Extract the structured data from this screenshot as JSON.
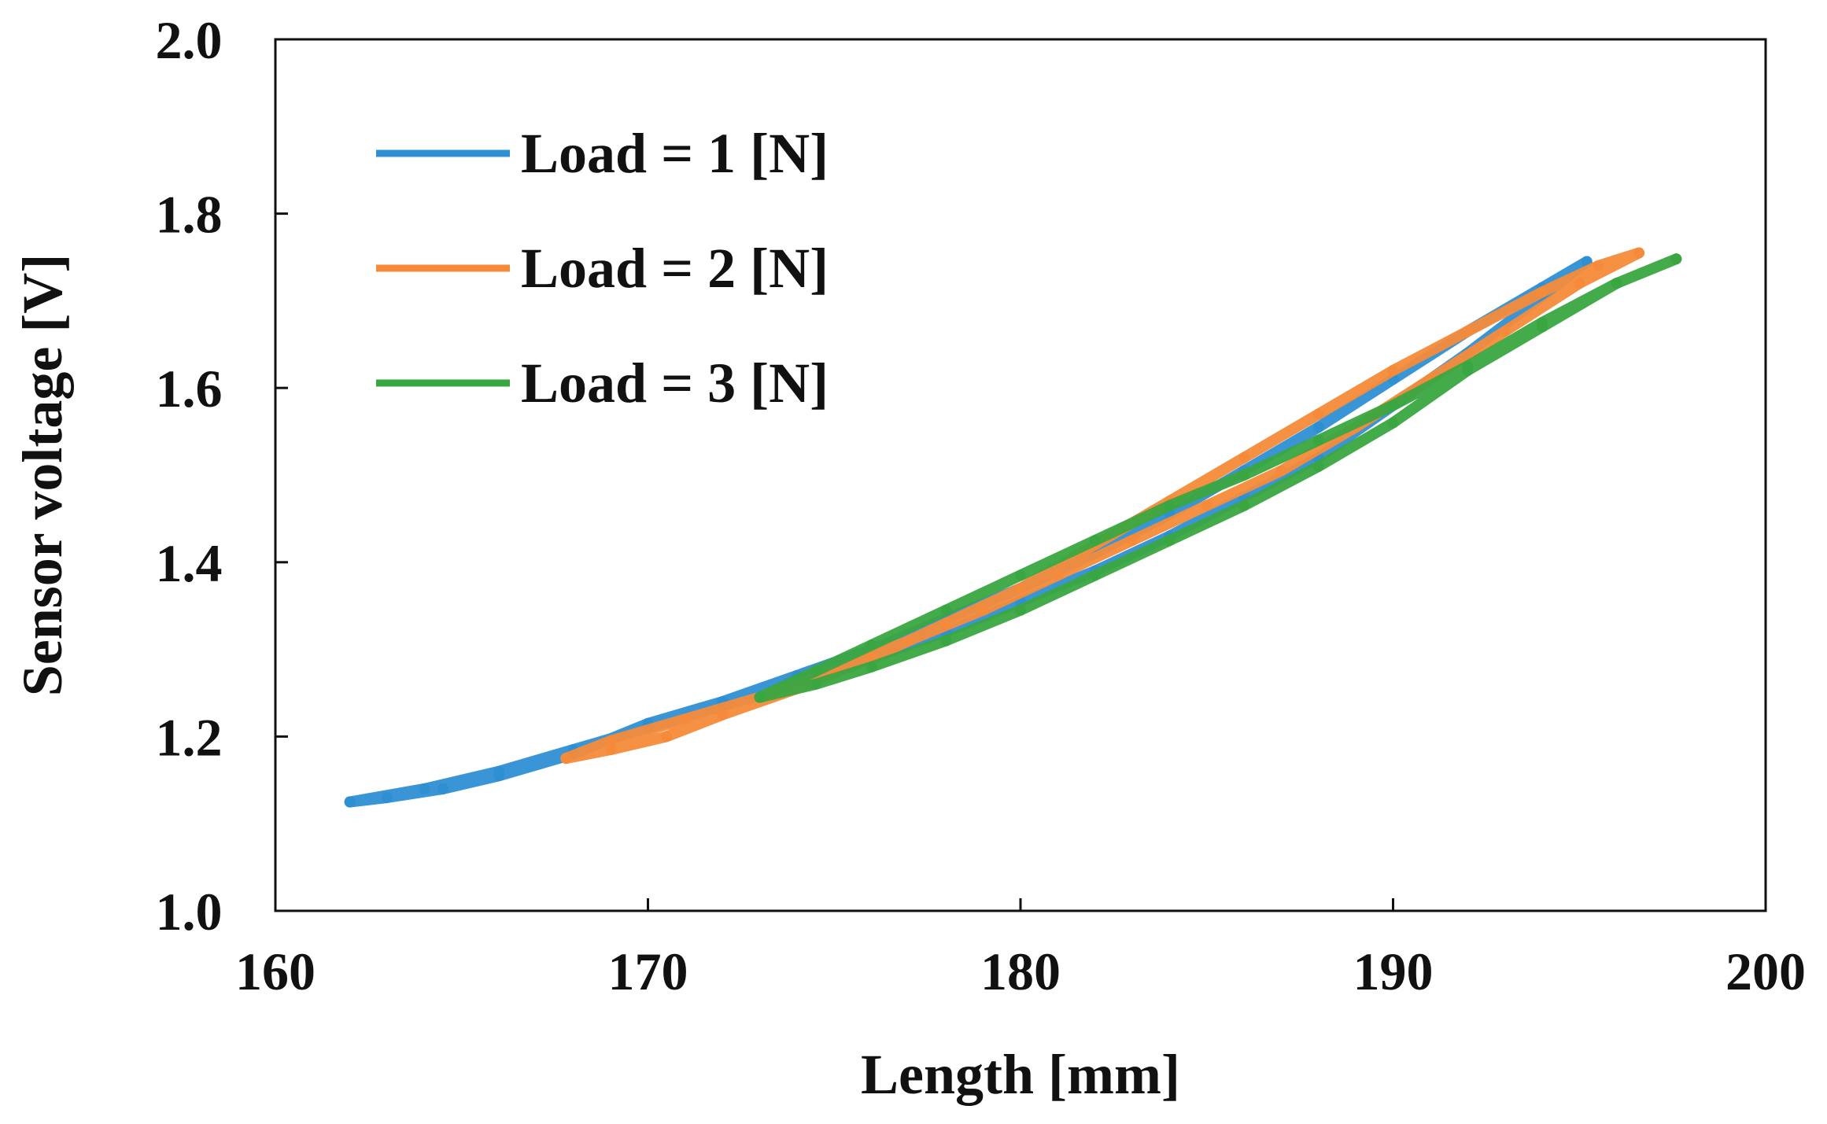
{
  "chart_data": {
    "type": "line",
    "title": "",
    "xlabel": "Length [mm]",
    "ylabel": "Sensor voltage [V]",
    "xlim": [
      160,
      200
    ],
    "ylim": [
      1.0,
      2.0
    ],
    "xticks": [
      "160",
      "170",
      "180",
      "190",
      "200"
    ],
    "yticks": [
      "1.0",
      "1.2",
      "1.4",
      "1.6",
      "1.8",
      "2.0"
    ],
    "grid": false,
    "legend_position": "top-left",
    "series": [
      {
        "name": "Load = 1 [N]",
        "color": "#2e8fd3",
        "note": "hysteresis loop: loading then unloading",
        "x": [
          162.0,
          163.0,
          164.5,
          166.0,
          168.0,
          170.0,
          172.0,
          174.0,
          176.0,
          178.0,
          180.0,
          182.0,
          184.0,
          186.0,
          188.0,
          190.0,
          192.0,
          194.0,
          195.2,
          194.0,
          192.0,
          190.0,
          188.0,
          186.0,
          184.0,
          182.0,
          180.0,
          178.0,
          176.0,
          174.0,
          172.0,
          170.0,
          168.0,
          166.0,
          164.0,
          162.0
        ],
        "y": [
          1.125,
          1.13,
          1.14,
          1.155,
          1.18,
          1.215,
          1.24,
          1.27,
          1.3,
          1.335,
          1.37,
          1.41,
          1.455,
          1.505,
          1.555,
          1.61,
          1.665,
          1.715,
          1.745,
          1.705,
          1.64,
          1.58,
          1.52,
          1.475,
          1.43,
          1.39,
          1.355,
          1.32,
          1.29,
          1.26,
          1.235,
          1.21,
          1.185,
          1.16,
          1.14,
          1.125
        ]
      },
      {
        "name": "Load = 2 [N]",
        "color": "#f58b3a",
        "note": "hysteresis loop: loading then unloading",
        "x": [
          167.8,
          169.0,
          170.5,
          172.0,
          174.0,
          176.0,
          178.0,
          180.0,
          182.0,
          184.0,
          186.0,
          188.0,
          190.0,
          192.0,
          194.0,
          195.5,
          196.6,
          195.0,
          193.0,
          191.0,
          189.0,
          187.0,
          185.0,
          183.0,
          181.0,
          179.0,
          177.0,
          175.0,
          173.0,
          171.0,
          169.0,
          167.8
        ],
        "y": [
          1.175,
          1.185,
          1.2,
          1.225,
          1.255,
          1.29,
          1.33,
          1.37,
          1.42,
          1.47,
          1.52,
          1.57,
          1.62,
          1.665,
          1.71,
          1.74,
          1.755,
          1.72,
          1.665,
          1.61,
          1.555,
          1.505,
          1.465,
          1.425,
          1.385,
          1.345,
          1.31,
          1.275,
          1.245,
          1.22,
          1.195,
          1.175
        ]
      },
      {
        "name": "Load = 3 [N]",
        "color": "#3aa641",
        "note": "hysteresis loop: loading then unloading",
        "x": [
          173.0,
          174.5,
          176.0,
          178.0,
          180.0,
          182.0,
          184.0,
          186.0,
          188.0,
          190.0,
          192.0,
          194.0,
          196.0,
          197.6,
          196.0,
          194.0,
          192.0,
          190.0,
          188.0,
          186.0,
          184.0,
          182.0,
          180.0,
          178.0,
          176.0,
          174.5,
          173.0
        ],
        "y": [
          1.245,
          1.26,
          1.28,
          1.31,
          1.345,
          1.385,
          1.425,
          1.465,
          1.51,
          1.56,
          1.62,
          1.67,
          1.72,
          1.748,
          1.72,
          1.675,
          1.625,
          1.58,
          1.54,
          1.5,
          1.465,
          1.425,
          1.385,
          1.345,
          1.305,
          1.275,
          1.245
        ]
      }
    ]
  }
}
